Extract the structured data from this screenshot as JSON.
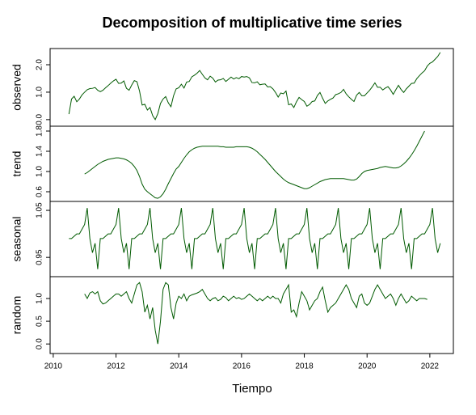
{
  "chart_data": {
    "type": "line",
    "title": "Decomposition of multiplicative time series",
    "xlabel": "Tiempo",
    "color": "#005a00",
    "xlim": [
      2009.9,
      2022.75
    ],
    "xticks": [
      2010,
      2012,
      2014,
      2016,
      2018,
      2020,
      2022
    ],
    "x": [
      2010.5,
      2010.583,
      2010.667,
      2010.75,
      2010.833,
      2010.917,
      2011.0,
      2011.083,
      2011.167,
      2011.25,
      2011.333,
      2011.417,
      2011.5,
      2011.583,
      2011.667,
      2011.75,
      2011.833,
      2011.917,
      2012.0,
      2012.083,
      2012.167,
      2012.25,
      2012.333,
      2012.417,
      2012.5,
      2012.583,
      2012.667,
      2012.75,
      2012.833,
      2012.917,
      2013.0,
      2013.083,
      2013.167,
      2013.25,
      2013.333,
      2013.417,
      2013.5,
      2013.583,
      2013.667,
      2013.75,
      2013.833,
      2013.917,
      2014.0,
      2014.083,
      2014.167,
      2014.25,
      2014.333,
      2014.417,
      2014.5,
      2014.583,
      2014.667,
      2014.75,
      2014.833,
      2014.917,
      2015.0,
      2015.083,
      2015.167,
      2015.25,
      2015.333,
      2015.417,
      2015.5,
      2015.583,
      2015.667,
      2015.75,
      2015.833,
      2015.917,
      2016.0,
      2016.083,
      2016.167,
      2016.25,
      2016.333,
      2016.417,
      2016.5,
      2016.583,
      2016.667,
      2016.75,
      2016.833,
      2016.917,
      2017.0,
      2017.083,
      2017.167,
      2017.25,
      2017.333,
      2017.417,
      2017.5,
      2017.583,
      2017.667,
      2017.75,
      2017.833,
      2017.917,
      2018.0,
      2018.083,
      2018.167,
      2018.25,
      2018.333,
      2018.417,
      2018.5,
      2018.583,
      2018.667,
      2018.75,
      2018.833,
      2018.917,
      2019.0,
      2019.083,
      2019.167,
      2019.25,
      2019.333,
      2019.417,
      2019.5,
      2019.583,
      2019.667,
      2019.75,
      2019.833,
      2019.917,
      2020.0,
      2020.083,
      2020.167,
      2020.25,
      2020.333,
      2020.417,
      2020.5,
      2020.583,
      2020.667,
      2020.75,
      2020.833,
      2020.917,
      2021.0,
      2021.083,
      2021.167,
      2021.25,
      2021.333,
      2021.417,
      2021.5,
      2021.583,
      2021.667,
      2021.75,
      2021.833,
      2021.917,
      2022.0,
      2022.083,
      2022.167,
      2022.25,
      2022.333
    ],
    "panels": [
      {
        "name": "observed",
        "ylim": [
          -0.24,
          2.59
        ],
        "yticks": [
          {
            "value": 0,
            "label": "0.0"
          },
          {
            "value": 1,
            "label": "1.0"
          },
          {
            "value": 2,
            "label": "2.0"
          }
        ],
        "values": [
          0.2,
          0.75,
          0.85,
          0.65,
          0.75,
          0.9,
          1.0,
          1.09,
          1.13,
          1.14,
          1.17,
          1.07,
          1.02,
          1.07,
          1.16,
          1.24,
          1.33,
          1.41,
          1.47,
          1.32,
          1.33,
          1.41,
          1.14,
          1.07,
          1.26,
          1.42,
          1.38,
          1.04,
          0.53,
          0.56,
          0.35,
          0.44,
          0.15,
          0.0,
          0.22,
          0.59,
          0.75,
          0.84,
          0.61,
          0.47,
          0.87,
          1.12,
          1.16,
          1.29,
          1.15,
          1.37,
          1.39,
          1.56,
          1.62,
          1.69,
          1.79,
          1.65,
          1.52,
          1.45,
          1.58,
          1.51,
          1.37,
          1.44,
          1.45,
          1.5,
          1.39,
          1.47,
          1.55,
          1.48,
          1.53,
          1.49,
          1.57,
          1.55,
          1.57,
          1.52,
          1.35,
          1.34,
          1.38,
          1.27,
          1.29,
          1.3,
          1.19,
          1.2,
          1.12,
          0.99,
          0.82,
          0.97,
          0.94,
          1.04,
          0.54,
          0.57,
          0.44,
          0.65,
          0.81,
          0.73,
          0.66,
          0.49,
          0.55,
          0.66,
          0.68,
          0.88,
          0.99,
          0.78,
          0.59,
          0.68,
          0.74,
          0.79,
          0.91,
          0.94,
          0.99,
          1.1,
          0.94,
          0.83,
          0.74,
          0.66,
          0.89,
          0.99,
          0.87,
          0.87,
          0.97,
          1.07,
          1.2,
          1.34,
          1.18,
          1.18,
          1.08,
          1.15,
          1.2,
          1.08,
          0.92,
          1.09,
          1.25,
          1.1,
          0.99,
          1.12,
          1.22,
          1.32,
          1.33,
          1.49,
          1.6,
          1.7,
          1.78,
          1.95,
          2.05,
          2.1,
          2.2,
          2.3,
          2.45
        ]
      },
      {
        "name": "trend",
        "ylim": [
          0.408,
          1.896
        ],
        "yticks": [
          0.6,
          {
            "value": 1,
            "label": "1.0"
          },
          1.4,
          1.8
        ],
        "values": [
          null,
          null,
          null,
          null,
          null,
          null,
          0.95,
          0.98,
          1.02,
          1.06,
          1.1,
          1.14,
          1.17,
          1.2,
          1.22,
          1.24,
          1.25,
          1.26,
          1.27,
          1.27,
          1.26,
          1.25,
          1.23,
          1.2,
          1.16,
          1.1,
          1.02,
          0.9,
          0.75,
          0.65,
          0.6,
          0.56,
          0.52,
          0.48,
          0.47,
          0.5,
          0.56,
          0.65,
          0.76,
          0.86,
          0.96,
          1.05,
          1.1,
          1.18,
          1.26,
          1.33,
          1.39,
          1.43,
          1.46,
          1.48,
          1.49,
          1.5,
          1.5,
          1.5,
          1.5,
          1.5,
          1.5,
          1.5,
          1.49,
          1.49,
          1.48,
          1.48,
          1.48,
          1.48,
          1.49,
          1.49,
          1.49,
          1.49,
          1.49,
          1.48,
          1.46,
          1.43,
          1.39,
          1.34,
          1.29,
          1.24,
          1.18,
          1.12,
          1.06,
          1.0,
          0.95,
          0.9,
          0.85,
          0.81,
          0.78,
          0.76,
          0.74,
          0.72,
          0.7,
          0.68,
          0.66,
          0.66,
          0.68,
          0.71,
          0.74,
          0.77,
          0.8,
          0.82,
          0.84,
          0.85,
          0.86,
          0.86,
          0.86,
          0.86,
          0.86,
          0.86,
          0.85,
          0.84,
          0.83,
          0.83,
          0.85,
          0.9,
          0.96,
          1.0,
          1.02,
          1.03,
          1.04,
          1.05,
          1.06,
          1.08,
          1.09,
          1.1,
          1.09,
          1.08,
          1.07,
          1.07,
          1.08,
          1.11,
          1.15,
          1.2,
          1.26,
          1.33,
          1.41,
          1.5,
          1.6,
          1.7,
          1.8,
          null,
          null,
          null,
          null,
          null,
          null
        ]
      },
      {
        "name": "seasonal",
        "ylim": [
          0.909,
          1.069
        ],
        "yticks": [
          0.95,
          1.05
        ],
        "values": [
          0.99,
          0.99,
          0.995,
          1.0,
          1.0,
          1.01,
          1.02,
          1.055,
          0.99,
          0.96,
          0.98,
          0.925,
          0.99,
          0.99,
          0.995,
          1.0,
          1.0,
          1.01,
          1.02,
          1.055,
          0.99,
          0.96,
          0.98,
          0.925,
          0.99,
          0.99,
          0.995,
          1.0,
          1.0,
          1.01,
          1.02,
          1.055,
          0.99,
          0.96,
          0.98,
          0.925,
          0.99,
          0.99,
          0.995,
          1.0,
          1.0,
          1.01,
          1.02,
          1.055,
          0.99,
          0.96,
          0.98,
          0.925,
          0.99,
          0.99,
          0.995,
          1.0,
          1.0,
          1.01,
          1.02,
          1.055,
          0.99,
          0.96,
          0.98,
          0.925,
          0.99,
          0.99,
          0.995,
          1.0,
          1.0,
          1.01,
          1.02,
          1.055,
          0.99,
          0.96,
          0.98,
          0.925,
          0.99,
          0.99,
          0.995,
          1.0,
          1.0,
          1.01,
          1.02,
          1.055,
          0.99,
          0.96,
          0.98,
          0.925,
          0.99,
          0.99,
          0.995,
          1.0,
          1.0,
          1.01,
          1.02,
          1.055,
          0.99,
          0.96,
          0.98,
          0.925,
          0.99,
          0.99,
          0.995,
          1.0,
          1.0,
          1.01,
          1.02,
          1.055,
          0.99,
          0.96,
          0.98,
          0.925,
          0.99,
          0.99,
          0.995,
          1.0,
          1.0,
          1.01,
          1.02,
          1.055,
          0.99,
          0.96,
          0.98,
          0.925,
          0.99,
          0.99,
          0.995,
          1.0,
          1.0,
          1.01,
          1.02,
          1.055,
          0.99,
          0.96,
          0.98,
          0.925,
          0.99,
          0.99,
          0.995,
          1.0,
          1.0,
          1.01,
          1.02,
          1.055,
          0.99,
          0.96,
          0.98
        ]
      },
      {
        "name": "random",
        "ylim": [
          -0.21,
          1.48
        ],
        "yticks": [
          {
            "value": 0,
            "label": "0.0"
          },
          0.5,
          {
            "value": 1,
            "label": "1.0"
          }
        ],
        "values": [
          null,
          null,
          null,
          null,
          null,
          null,
          1.1,
          1.0,
          1.12,
          1.15,
          1.1,
          1.15,
          0.95,
          0.88,
          0.9,
          0.95,
          1.0,
          1.05,
          1.1,
          1.1,
          1.05,
          1.1,
          1.15,
          1.0,
          0.9,
          1.1,
          1.3,
          1.35,
          1.15,
          0.7,
          0.85,
          0.55,
          0.8,
          0.3,
          0.0,
          0.5,
          1.2,
          1.35,
          1.3,
          0.8,
          0.55,
          0.9,
          1.05,
          1.0,
          1.1,
          0.95,
          1.05,
          1.08,
          1.1,
          1.12,
          1.15,
          1.2,
          1.1,
          1.0,
          0.95,
          1.0,
          1.02,
          0.95,
          0.98,
          1.05,
          1.02,
          0.95,
          1.0,
          1.05,
          1.0,
          1.02,
          0.98,
          1.0,
          1.05,
          1.1,
          1.05,
          1.0,
          0.95,
          1.0,
          0.95,
          1.0,
          1.05,
          1.0,
          1.05,
          1.0,
          1.0,
          0.9,
          1.1,
          1.2,
          1.3,
          0.7,
          0.75,
          0.6,
          0.9,
          1.15,
          1.05,
          0.95,
          0.75,
          0.85,
          0.95,
          1.0,
          1.15,
          1.25,
          0.95,
          0.7,
          0.8,
          0.85,
          0.9,
          1.0,
          1.1,
          1.2,
          1.3,
          1.2,
          1.0,
          0.9,
          0.8,
          1.05,
          1.1,
          0.9,
          0.85,
          0.9,
          1.05,
          1.2,
          1.3,
          1.2,
          1.1,
          1.0,
          1.05,
          1.1,
          1.0,
          0.85,
          1.0,
          1.1,
          1.0,
          0.9,
          0.95,
          1.05,
          1.0,
          0.95,
          1.0,
          1.0,
          1.0,
          0.98,
          null,
          null,
          null,
          null,
          null
        ]
      }
    ]
  }
}
